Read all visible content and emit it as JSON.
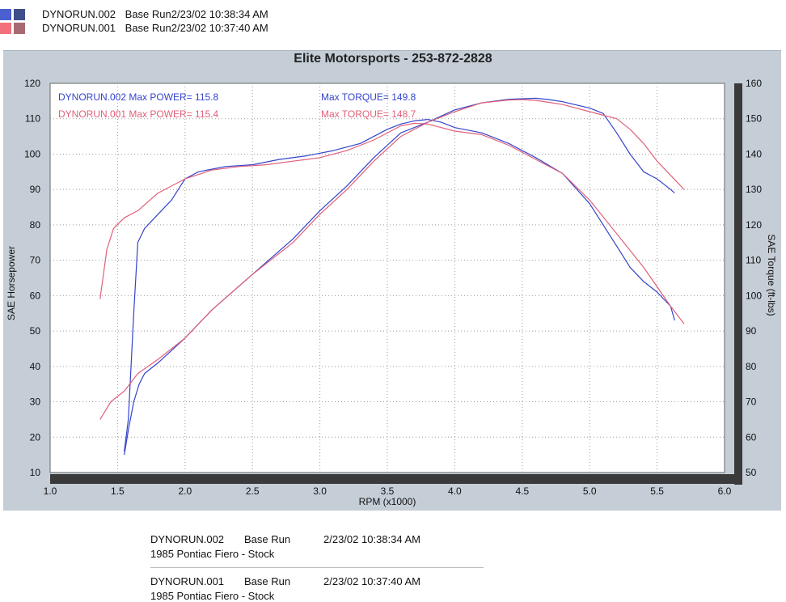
{
  "top_legend": [
    {
      "run": "DYNORUN.002",
      "desc": "Base Run2/23/02 10:38:34 AM",
      "color_a": "#4a5fd0",
      "color_b": "#3f4f8a"
    },
    {
      "run": "DYNORUN.001",
      "desc": "Base Run2/23/02 10:37:40 AM",
      "color_a": "#f2707c",
      "color_b": "#a86a72"
    }
  ],
  "colors": {
    "run002": "#3344cc",
    "run001": "#e0607a",
    "frame": "#c5ced7",
    "plot_bg": "#ffffff",
    "bars": "#3a3a3a"
  },
  "chart_data": {
    "type": "line",
    "title": "Elite Motorsports - 253-872-2828",
    "xlabel": "RPM (x1000)",
    "ylabel_left": "SAE Horsepower",
    "ylabel_right": "SAE Torque (ft-lbs)",
    "xlim": [
      1.0,
      6.0
    ],
    "ylim_left": [
      10,
      120
    ],
    "ylim_right": [
      50,
      160
    ],
    "x_ticks": [
      "1.0",
      "1.5",
      "2.0",
      "2.5",
      "3.0",
      "3.5",
      "4.0",
      "4.5",
      "5.0",
      "5.5",
      "6.0"
    ],
    "y_ticks_left": [
      "10",
      "20",
      "30",
      "40",
      "50",
      "60",
      "70",
      "80",
      "90",
      "100",
      "110",
      "120"
    ],
    "y_ticks_right": [
      "50",
      "60",
      "70",
      "80",
      "90",
      "100",
      "110",
      "120",
      "130",
      "140",
      "150",
      "160"
    ],
    "grid": true,
    "annotations": {
      "run002_power": "DYNORUN.002  Max POWER= 115.8",
      "run002_torque": "Max TORQUE= 149.8",
      "run001_power": "DYNORUN.001  Max POWER= 115.4",
      "run001_torque": "Max TORQUE= 148.7"
    },
    "series": [
      {
        "name": "DYNORUN.002 SAE Torque",
        "axis": "right",
        "color": "#3344cc",
        "x": [
          1.55,
          1.58,
          1.62,
          1.65,
          1.7,
          1.8,
          1.9,
          2.0,
          2.1,
          2.3,
          2.5,
          2.7,
          2.9,
          3.1,
          3.3,
          3.5,
          3.6,
          3.7,
          3.8,
          3.9,
          4.0,
          4.2,
          4.4,
          4.6,
          4.8,
          5.0,
          5.2,
          5.3,
          5.4,
          5.5,
          5.6,
          5.63
        ],
        "y": [
          56,
          65,
          95,
          115,
          119,
          123,
          127,
          133,
          135,
          136.5,
          137,
          138.5,
          139.5,
          141,
          143,
          147,
          148.5,
          149.4,
          149.8,
          149,
          147.5,
          146,
          143,
          139,
          134.5,
          126,
          114,
          108,
          104,
          101,
          97,
          93
        ]
      },
      {
        "name": "DYNORUN.001 SAE Torque",
        "axis": "right",
        "color": "#e0607a",
        "x": [
          1.37,
          1.42,
          1.47,
          1.55,
          1.65,
          1.8,
          2.0,
          2.2,
          2.4,
          2.6,
          2.8,
          3.0,
          3.2,
          3.4,
          3.6,
          3.7,
          3.8,
          3.9,
          4.0,
          4.2,
          4.4,
          4.6,
          4.8,
          5.0,
          5.2,
          5.4,
          5.6,
          5.7
        ],
        "y": [
          99,
          113,
          119,
          122,
          124,
          129,
          133,
          135.5,
          136.5,
          137,
          138,
          139,
          141,
          144,
          148,
          148.7,
          148.5,
          147.5,
          146.5,
          145.5,
          142.5,
          138.5,
          134.5,
          127,
          117.5,
          108,
          97,
          92
        ]
      },
      {
        "name": "DYNORUN.002 SAE Horsepower",
        "axis": "left",
        "color": "#3344cc",
        "x": [
          1.55,
          1.58,
          1.62,
          1.66,
          1.7,
          1.8,
          2.0,
          2.2,
          2.5,
          2.8,
          3.0,
          3.2,
          3.4,
          3.6,
          3.8,
          4.0,
          4.2,
          4.4,
          4.6,
          4.7,
          4.8,
          5.0,
          5.1,
          5.2,
          5.3,
          5.4,
          5.5,
          5.6,
          5.63
        ],
        "y": [
          15,
          22,
          30,
          35,
          38,
          41,
          48,
          56,
          66,
          76,
          84,
          91,
          99,
          106,
          109,
          112.5,
          114.5,
          115.5,
          115.8,
          115.4,
          114.8,
          113,
          111.5,
          106,
          100,
          95,
          93,
          90,
          89
        ]
      },
      {
        "name": "DYNORUN.001 SAE Horsepower",
        "axis": "left",
        "color": "#e0607a",
        "x": [
          1.37,
          1.45,
          1.55,
          1.65,
          1.8,
          2.0,
          2.2,
          2.5,
          2.8,
          3.0,
          3.2,
          3.4,
          3.6,
          3.8,
          4.0,
          4.2,
          4.4,
          4.5,
          4.6,
          4.8,
          5.0,
          5.2,
          5.3,
          5.4,
          5.5,
          5.6,
          5.7
        ],
        "y": [
          25,
          30,
          33,
          38,
          42,
          48,
          56,
          66,
          75,
          83,
          90,
          98,
          105,
          109,
          112,
          114.5,
          115.3,
          115.4,
          115.2,
          114,
          112,
          110,
          107,
          103,
          98,
          94,
          90
        ]
      }
    ]
  },
  "footer": [
    {
      "run": "DYNORUN.002",
      "label": "Base Run",
      "datetime": "2/23/02 10:38:34 AM",
      "vehicle": "1985 Pontiac Fiero - Stock"
    },
    {
      "run": "DYNORUN.001",
      "label": "Base Run",
      "datetime": "2/23/02 10:37:40 AM",
      "vehicle": "1985 Pontiac Fiero - Stock"
    }
  ]
}
